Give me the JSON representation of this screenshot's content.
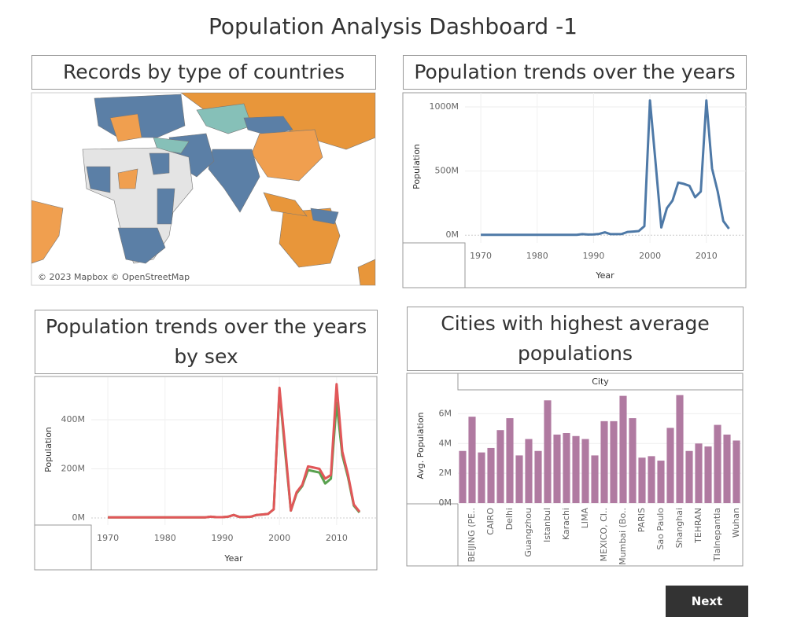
{
  "title": "Population Analysis Dashboard -1",
  "map": {
    "title": "Records by type of countries",
    "attribution": "© 2023 Mapbox © OpenStreetMap"
  },
  "next_button": "Next",
  "chart_data": [
    {
      "type": "line",
      "title": "Population  trends over the years",
      "x_label": "Year",
      "y_label": "Population",
      "color": "#4e79a7",
      "x": [
        1970,
        1971,
        1972,
        1973,
        1974,
        1975,
        1976,
        1977,
        1978,
        1979,
        1980,
        1981,
        1982,
        1983,
        1984,
        1985,
        1986,
        1987,
        1988,
        1989,
        1990,
        1991,
        1992,
        1993,
        1994,
        1995,
        1996,
        1997,
        1998,
        1999,
        2000,
        2001,
        2002,
        2003,
        2004,
        2005,
        2006,
        2007,
        2008,
        2009,
        2010,
        2011,
        2012,
        2013,
        2014
      ],
      "values": [
        3,
        3,
        3,
        3,
        3,
        3,
        3,
        3,
        3,
        3,
        3,
        3,
        3,
        3,
        3,
        3,
        3,
        3,
        8,
        5,
        6,
        10,
        22,
        8,
        8,
        9,
        25,
        28,
        32,
        70,
        1050,
        560,
        60,
        210,
        270,
        410,
        400,
        385,
        295,
        340,
        1050,
        520,
        340,
        110,
        50
      ],
      "xlim": [
        1967.2,
        2017
      ],
      "xticks": [
        1970,
        1980,
        1990,
        2000,
        2010
      ],
      "ylim": [
        -60,
        1110
      ],
      "yticks": [
        {
          "value": 0,
          "label": "0M"
        },
        {
          "value": 500,
          "label": "500M"
        },
        {
          "value": 1000,
          "label": "1000M"
        }
      ],
      "grid": true
    },
    {
      "type": "line",
      "title": "Population trends over the years by sex",
      "x_label": "Year",
      "y_label": "Population",
      "x": [
        1970,
        1971,
        1972,
        1973,
        1974,
        1975,
        1976,
        1977,
        1978,
        1979,
        1980,
        1981,
        1982,
        1983,
        1984,
        1985,
        1986,
        1987,
        1988,
        1989,
        1990,
        1991,
        1992,
        1993,
        1994,
        1995,
        1996,
        1997,
        1998,
        1999,
        2000,
        2001,
        2002,
        2003,
        2004,
        2005,
        2006,
        2007,
        2008,
        2009,
        2010,
        2011,
        2012,
        2013,
        2014
      ],
      "series": [
        {
          "color": "#59a14f",
          "values": [
            2,
            2,
            2,
            2,
            2,
            2,
            2,
            2,
            2,
            2,
            2,
            2,
            2,
            2,
            2,
            2,
            2,
            2,
            5,
            3,
            3,
            5,
            12,
            4,
            4,
            5,
            12,
            14,
            16,
            35,
            520,
            270,
            30,
            100,
            130,
            195,
            190,
            185,
            140,
            160,
            470,
            255,
            165,
            50,
            22
          ]
        },
        {
          "color": "#e15759",
          "values": [
            2,
            2,
            2,
            2,
            2,
            2,
            2,
            2,
            2,
            2,
            2,
            2,
            2,
            2,
            2,
            2,
            2,
            2,
            5,
            3,
            3,
            5,
            12,
            4,
            4,
            5,
            12,
            14,
            16,
            35,
            530,
            290,
            30,
            105,
            135,
            210,
            205,
            200,
            160,
            175,
            545,
            270,
            175,
            55,
            25
          ]
        }
      ],
      "xlim": [
        1967.1,
        2016.9
      ],
      "xticks": [
        1970,
        1980,
        1990,
        2000,
        2010
      ],
      "ylim": [
        -29,
        573
      ],
      "yticks": [
        {
          "value": 0,
          "label": "0M"
        },
        {
          "value": 200,
          "label": "200M"
        },
        {
          "value": 400,
          "label": "400M"
        }
      ],
      "grid": true
    },
    {
      "type": "bar",
      "title": "Cities with highest average populations",
      "x_header": "City",
      "y_label": "Avg. Population",
      "color": "#b07aa1",
      "categories": [
        null,
        "BEIJING (PE..",
        null,
        "CAIRO",
        null,
        "Delhi",
        null,
        "Guangzhou",
        null,
        "Istanbul",
        null,
        "Karachi",
        null,
        "LIMA",
        null,
        "MEXICO, CI..",
        null,
        "Mumbai (Bo..",
        null,
        "PARIS",
        null,
        "Sao Paulo",
        null,
        "Shanghai",
        null,
        "TEHRAN",
        null,
        "Tlalnepantla",
        null,
        "Wuhan"
      ],
      "values": [
        3.5,
        5.8,
        3.4,
        3.7,
        4.9,
        5.7,
        3.2,
        4.3,
        3.5,
        6.9,
        4.6,
        4.7,
        4.5,
        4.3,
        3.2,
        5.5,
        5.5,
        7.2,
        5.7,
        3.05,
        3.15,
        2.85,
        5.05,
        7.25,
        3.5,
        4.0,
        3.8,
        5.25,
        4.6,
        4.2
      ],
      "ylim": [
        -0.05,
        7.55
      ],
      "yticks": [
        {
          "value": 0,
          "label": "0M"
        },
        {
          "value": 2,
          "label": "2M"
        },
        {
          "value": 4,
          "label": "4M"
        },
        {
          "value": 6,
          "label": "6M"
        }
      ],
      "grid": true
    }
  ]
}
